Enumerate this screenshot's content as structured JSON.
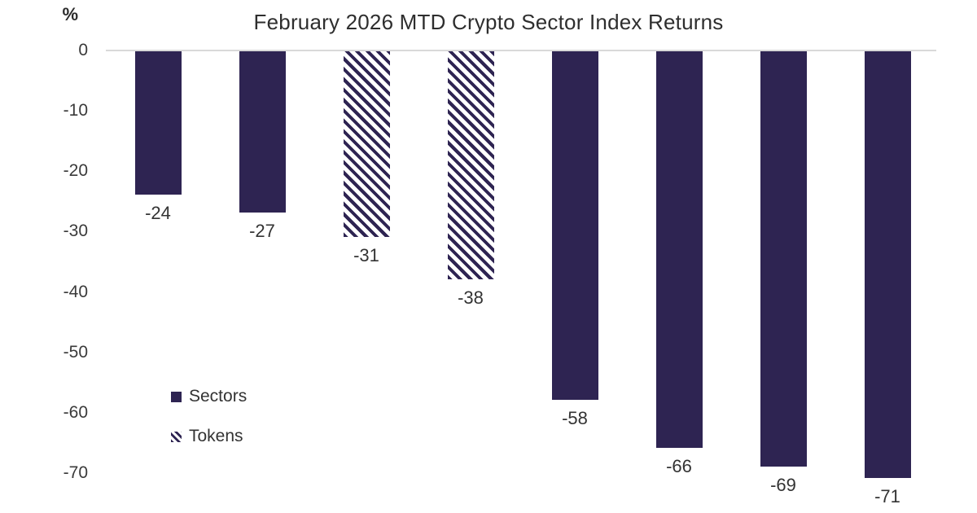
{
  "chart_data": {
    "type": "bar",
    "title": "February 2026 MTD Crypto Sector Index Returns",
    "ylabel": "%",
    "xlabel": "",
    "ylim": [
      -75,
      0
    ],
    "yticks": [
      0,
      -10,
      -20,
      -30,
      -40,
      -50,
      -60,
      -70
    ],
    "grid": false,
    "legend_position": "lower-left",
    "legend": [
      {
        "label": "Sectors",
        "style": "solid"
      },
      {
        "label": "Tokens",
        "style": "hatched"
      }
    ],
    "bars": [
      {
        "value": -24,
        "label": "-24",
        "style": "solid"
      },
      {
        "value": -27,
        "label": "-27",
        "style": "solid"
      },
      {
        "value": -31,
        "label": "-31",
        "style": "hatched"
      },
      {
        "value": -38,
        "label": "-38",
        "style": "hatched"
      },
      {
        "value": -58,
        "label": "-58",
        "style": "solid"
      },
      {
        "value": -66,
        "label": "-66",
        "style": "solid"
      },
      {
        "value": -69,
        "label": "-69",
        "style": "solid"
      },
      {
        "value": -71,
        "label": "-71",
        "style": "solid"
      }
    ],
    "colors": {
      "bar": "#2E2452",
      "hatch_background": "#FFFFFF",
      "axis_line": "#D9D9D9",
      "tick_text": "#3A3A3A",
      "value_text": "#333333",
      "title_text": "#2E2E2E"
    }
  }
}
